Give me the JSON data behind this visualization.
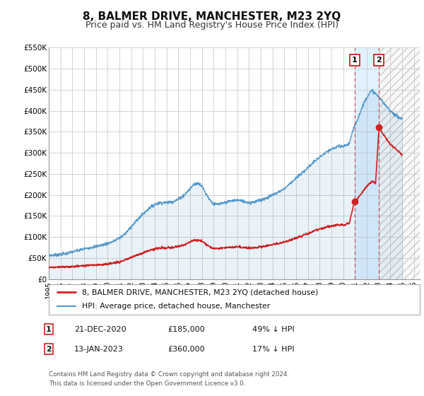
{
  "title": "8, BALMER DRIVE, MANCHESTER, M23 2YQ",
  "subtitle": "Price paid vs. HM Land Registry's House Price Index (HPI)",
  "title_fontsize": 11,
  "subtitle_fontsize": 9,
  "background_color": "#ffffff",
  "grid_color": "#cccccc",
  "hpi_color": "#5599cc",
  "price_color": "#cc2222",
  "highlight_fill": "#ddeeff",
  "ylim": [
    0,
    550000
  ],
  "yticks": [
    0,
    50000,
    100000,
    150000,
    200000,
    250000,
    300000,
    350000,
    400000,
    450000,
    500000,
    550000
  ],
  "ytick_labels": [
    "£0",
    "£50K",
    "£100K",
    "£150K",
    "£200K",
    "£250K",
    "£300K",
    "£350K",
    "£400K",
    "£450K",
    "£500K",
    "£550K"
  ],
  "sale1_date": 2020.97,
  "sale1_price": 185000,
  "sale1_label": "1",
  "sale2_date": 2023.04,
  "sale2_price": 360000,
  "sale2_label": "2",
  "legend_line1": "8, BALMER DRIVE, MANCHESTER, M23 2YQ (detached house)",
  "legend_line2": "HPI: Average price, detached house, Manchester",
  "annotation1_date": "21-DEC-2020",
  "annotation1_price": "£185,000",
  "annotation1_pct": "49% ↓ HPI",
  "annotation2_date": "13-JAN-2023",
  "annotation2_price": "£360,000",
  "annotation2_pct": "17% ↓ HPI",
  "footnote1": "Contains HM Land Registry data © Crown copyright and database right 2024.",
  "footnote2": "This data is licensed under the Open Government Licence v3.0."
}
